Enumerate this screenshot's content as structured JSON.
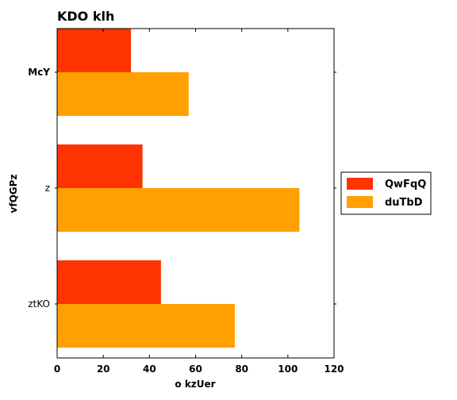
{
  "chart_data": {
    "type": "bar",
    "orientation": "horizontal",
    "title": "KDO klh",
    "xlabel": "o kzUer",
    "ylabel": "vfQGPz",
    "categories": [
      "McY",
      "z",
      "ztKO"
    ],
    "series": [
      {
        "name": "QwFqQ",
        "color": "#ff3300",
        "values": [
          32,
          37,
          45
        ]
      },
      {
        "name": "duTbD",
        "color": "#ffa000",
        "values": [
          57,
          105,
          77
        ]
      }
    ],
    "xlim": [
      0,
      120
    ],
    "xticks": [
      0,
      20,
      40,
      60,
      80,
      100,
      120
    ],
    "grid": false,
    "legend_position": "right"
  }
}
